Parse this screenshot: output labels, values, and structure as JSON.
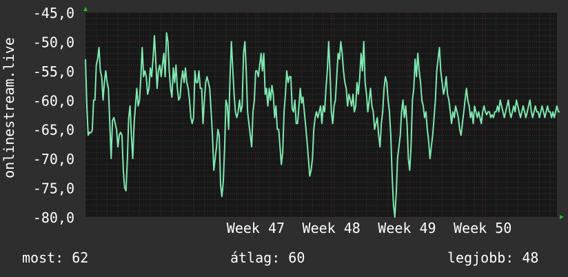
{
  "chart_data": {
    "type": "line",
    "ylabel": "onlinestream.live",
    "ylim": [
      -80,
      -45
    ],
    "yticks": [
      "-45,0",
      "-50,0",
      "-55,0",
      "-60,0",
      "-65,0",
      "-70,0",
      "-75,0",
      "-80,0"
    ],
    "ytick_values": [
      -45,
      -50,
      -55,
      -60,
      -65,
      -70,
      -75,
      -80
    ],
    "xticks": [
      "Week 47",
      "Week 48",
      "Week 49",
      "Week 50"
    ],
    "xtick_index": [
      126,
      182,
      238,
      294
    ],
    "x_count": 350,
    "grid": true,
    "series": [
      {
        "color": "#7ee8b0",
        "values": [
          -53,
          -61,
          -66,
          -65.5,
          -65.6,
          -65.2,
          -60,
          -60,
          -54,
          -53,
          -51,
          -55,
          -56,
          -60,
          -57,
          -55,
          -57,
          -58,
          -64,
          -70,
          -63.5,
          -63,
          -64,
          -65,
          -68,
          -66,
          -65.5,
          -66,
          -72,
          -75,
          -75.5,
          -70,
          -63,
          -61,
          -66,
          -70,
          -64,
          -61,
          -58,
          -61,
          -60,
          -56,
          -51,
          -56,
          -55,
          -56,
          -59,
          -58,
          -54.5,
          -56,
          -53,
          -49,
          -53,
          -58,
          -55,
          -54,
          -56,
          -54,
          -52,
          -56,
          -48.5,
          -50,
          -55,
          -58,
          -59.5,
          -54.5,
          -57,
          -54,
          -58,
          -60,
          -59.5,
          -56.5,
          -55,
          -57,
          -54.5,
          -57,
          -58,
          -60,
          -63,
          -64,
          -63,
          -55,
          -57,
          -57,
          -55,
          -58,
          -58,
          -64,
          -60,
          -57,
          -56,
          -57,
          -58,
          -62,
          -66,
          -72,
          -70,
          -68,
          -65,
          -66,
          -74.5,
          -76.5,
          -74,
          -68,
          -60,
          -61,
          -65,
          -56,
          -50,
          -54.5,
          -59,
          -62,
          -63,
          -62,
          -60,
          -62,
          -61,
          -52,
          -50,
          -55,
          -62,
          -64,
          -66,
          -68,
          -62,
          -60,
          -55,
          -55,
          -56,
          -54,
          -52,
          -55,
          -52,
          -59,
          -58,
          -61,
          -58,
          -60,
          -57.5,
          -59,
          -63,
          -61,
          -65,
          -65,
          -68,
          -71,
          -69,
          -62,
          -59,
          -55,
          -57,
          -56,
          -56,
          -61.5,
          -62,
          -60,
          -64,
          -64,
          -61,
          -58,
          -60.5,
          -59.5,
          -62,
          -64.5,
          -67,
          -70,
          -73,
          -72,
          -70,
          -65,
          -63,
          -62,
          -63,
          -62,
          -61,
          -64,
          -61,
          -62,
          -58,
          -55,
          -50,
          -55,
          -62,
          -64,
          -61,
          -60,
          -56,
          -52,
          -53,
          -50,
          -52,
          -55,
          -57,
          -58,
          -61,
          -59,
          -60,
          -61,
          -59,
          -62,
          -61,
          -57,
          -59,
          -56,
          -52,
          -55,
          -50,
          -57,
          -59,
          -62,
          -60,
          -58,
          -61,
          -62,
          -65,
          -64,
          -63,
          -66,
          -68,
          -64,
          -62,
          -58,
          -56,
          -57,
          -60,
          -62,
          -66,
          -73,
          -78,
          -80,
          -76,
          -70,
          -68,
          -66,
          -62,
          -60,
          -63,
          -61,
          -64,
          -70,
          -72,
          -68,
          -60,
          -58,
          -53,
          -56,
          -52,
          -55,
          -57,
          -60,
          -61,
          -63,
          -62,
          -65,
          -67,
          -70,
          -68,
          -66,
          -63,
          -60,
          -55,
          -53,
          -51,
          -55,
          -57,
          -59,
          -58,
          -56,
          -59,
          -60,
          -62,
          -64,
          -62,
          -63,
          -61,
          -62,
          -63,
          -65,
          -66,
          -64,
          -62,
          -60,
          -58,
          -60,
          -61,
          -63,
          -62,
          -64,
          -61,
          -62,
          -63,
          -62,
          -63,
          -64,
          -62,
          -61,
          -62,
          -62.5,
          -62,
          -62,
          -63,
          -62.5,
          -63,
          -62,
          -62,
          -61,
          -62,
          -60,
          -61,
          -62,
          -63,
          -62,
          -61,
          -60,
          -62,
          -63,
          -62,
          -61,
          -62,
          -60,
          -61,
          -62,
          -63,
          -62,
          -61,
          -62,
          -63,
          -62,
          -61,
          -60,
          -62,
          -63,
          -62,
          -61,
          -62,
          -62,
          -63,
          -62,
          -61,
          -62,
          -63,
          -62,
          -61,
          -62,
          -62,
          -63,
          -62,
          -63,
          -62,
          -61,
          -62,
          -62
        ]
      }
    ]
  },
  "footer": {
    "now": "most: 62",
    "avg": "átlag: 60",
    "best": "legjobb: 48"
  },
  "colors": {
    "background": "#2e2e2e",
    "plot_bg": "#181818",
    "grid_major": "#5a5a5a",
    "grid_red": "#6a2a2a",
    "line": "#7ee8b0",
    "arrow": "#1fbf2f"
  }
}
